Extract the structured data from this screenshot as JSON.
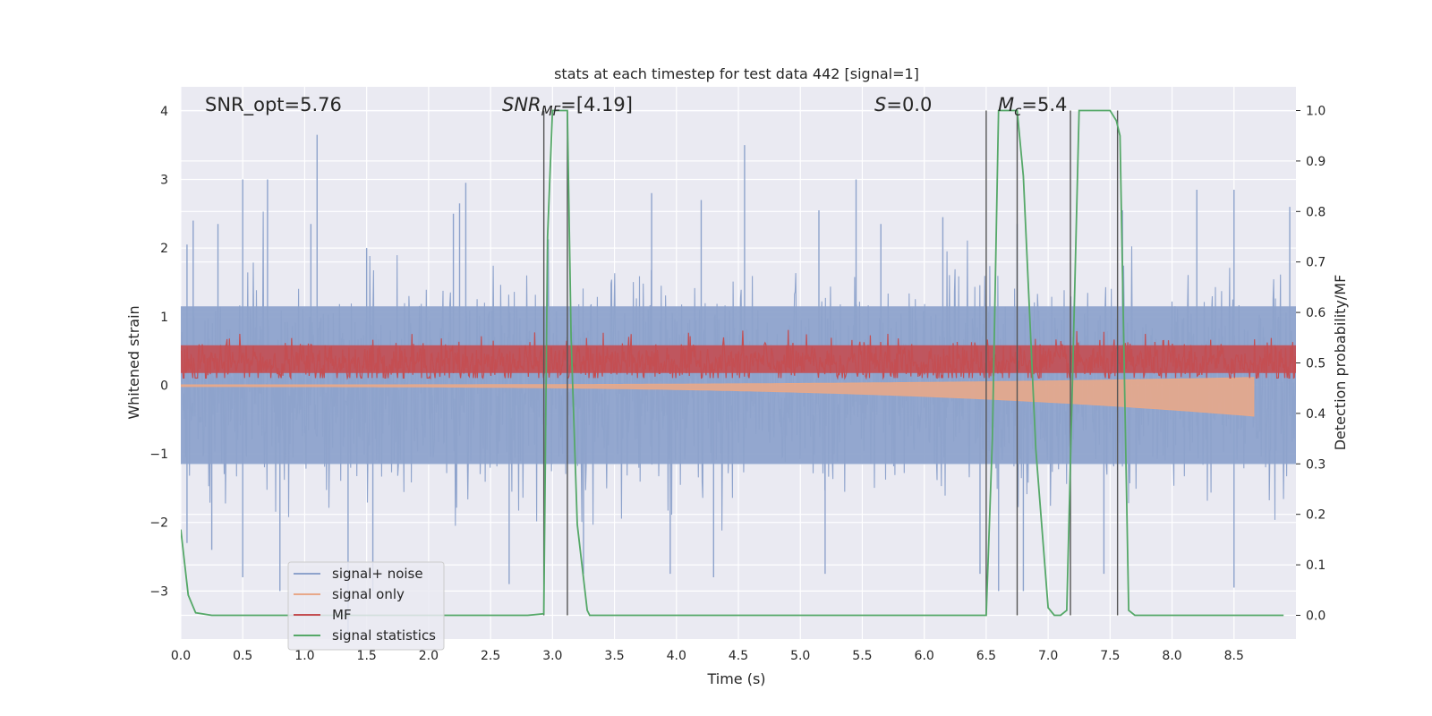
{
  "chart_data": {
    "type": "line",
    "title": "stats at each timestep for test data 442 [signal=1]",
    "xlabel": "Time (s)",
    "ylabel_left": "Whitened strain",
    "ylabel_right": "Detection probability/MF",
    "xlim": [
      0.0,
      9.0
    ],
    "ylim_left": [
      -3.7,
      4.35
    ],
    "ylim_right": [
      -0.047,
      1.047
    ],
    "x_ticks": [
      "0.0",
      "0.5",
      "1.0",
      "1.5",
      "2.0",
      "2.5",
      "3.0",
      "3.5",
      "4.0",
      "4.5",
      "5.0",
      "5.5",
      "6.0",
      "6.5",
      "7.0",
      "7.5",
      "8.0",
      "8.5"
    ],
    "y_ticks_left": [
      "−3",
      "−2",
      "−1",
      "0",
      "1",
      "2",
      "3",
      "4"
    ],
    "y_ticks_right": [
      "0.0",
      "0.1",
      "0.2",
      "0.3",
      "0.4",
      "0.5",
      "0.6",
      "0.7",
      "0.8",
      "0.9",
      "1.0"
    ],
    "grid": true,
    "legend_position": "lower-left",
    "annotations": {
      "snr_opt": "SNR_opt=5.76",
      "snr_mf_sym": "SNR",
      "snr_mf_sub": "MF",
      "snr_mf_val": "=[4.19]",
      "s_sym": "S",
      "s_val": "=0.0",
      "mc_sym": "M",
      "mc_sub": "c",
      "mc_val": "=5.4"
    },
    "series": [
      {
        "name": "signal+ noise",
        "color": "#8ea3cc",
        "axis": "left",
        "kind": "noise",
        "band": [
          -1.15,
          1.15
        ],
        "peaks": [
          [
            0.05,
            2.05
          ],
          [
            0.1,
            2.4
          ],
          [
            0.3,
            2.35
          ],
          [
            0.5,
            3.0
          ],
          [
            0.7,
            3.0
          ],
          [
            1.05,
            2.35
          ],
          [
            1.1,
            3.65
          ],
          [
            1.5,
            2.0
          ],
          [
            2.2,
            2.5
          ],
          [
            2.25,
            2.65
          ],
          [
            2.3,
            2.95
          ],
          [
            3.8,
            2.8
          ],
          [
            4.2,
            2.7
          ],
          [
            4.55,
            3.5
          ],
          [
            5.15,
            2.55
          ],
          [
            5.45,
            3.0
          ],
          [
            5.65,
            2.35
          ],
          [
            6.15,
            2.45
          ],
          [
            6.75,
            2.35
          ],
          [
            7.6,
            2.55
          ],
          [
            8.2,
            2.85
          ],
          [
            8.5,
            2.85
          ],
          [
            8.95,
            2.6
          ]
        ],
        "troughs": [
          [
            0.05,
            -2.3
          ],
          [
            0.25,
            -2.4
          ],
          [
            0.5,
            -2.8
          ],
          [
            0.8,
            -3.0
          ],
          [
            1.35,
            -3.6
          ],
          [
            1.55,
            -3.0
          ],
          [
            2.65,
            -2.9
          ],
          [
            3.25,
            -2.75
          ],
          [
            3.95,
            -2.75
          ],
          [
            4.3,
            -2.8
          ],
          [
            5.2,
            -2.75
          ],
          [
            6.45,
            -2.75
          ],
          [
            6.6,
            -3.0
          ],
          [
            6.8,
            -3.0
          ],
          [
            7.45,
            -2.75
          ],
          [
            8.5,
            -2.95
          ]
        ]
      },
      {
        "name": "signal only",
        "color": "#e8a889",
        "axis": "left",
        "kind": "chirp",
        "start_amplitude": 0.02,
        "end_amplitude": 0.45,
        "end_time": 8.66
      },
      {
        "name": "MF",
        "color": "#c44e52",
        "axis": "right",
        "kind": "mf",
        "baseline": 0.5,
        "band": [
          0.47,
          0.555
        ],
        "spike_max": 0.59
      },
      {
        "name": "signal statistics",
        "color": "#55a868",
        "axis": "right",
        "kind": "line",
        "x": [
          0.0,
          0.06,
          0.12,
          0.25,
          2.8,
          2.93,
          2.96,
          3.0,
          3.12,
          3.15,
          3.2,
          3.28,
          3.3,
          6.5,
          6.55,
          6.6,
          6.75,
          6.8,
          6.9,
          7.0,
          7.05,
          7.1,
          7.15,
          7.2,
          7.25,
          7.3,
          7.5,
          7.55,
          7.58,
          7.65,
          7.7,
          8.9
        ],
        "y": [
          0.17,
          0.04,
          0.005,
          0.0,
          0.0,
          0.003,
          0.75,
          1.0,
          1.0,
          0.55,
          0.18,
          0.01,
          0.0,
          0.0,
          0.35,
          1.0,
          1.0,
          0.87,
          0.33,
          0.015,
          0.0,
          0.0,
          0.01,
          0.5,
          1.0,
          1.0,
          1.0,
          0.98,
          0.95,
          0.01,
          0.0,
          0.0
        ]
      }
    ],
    "vlines": [
      2.93,
      3.12,
      6.5,
      6.75,
      7.18,
      7.56
    ],
    "vline_color": "#555555"
  }
}
